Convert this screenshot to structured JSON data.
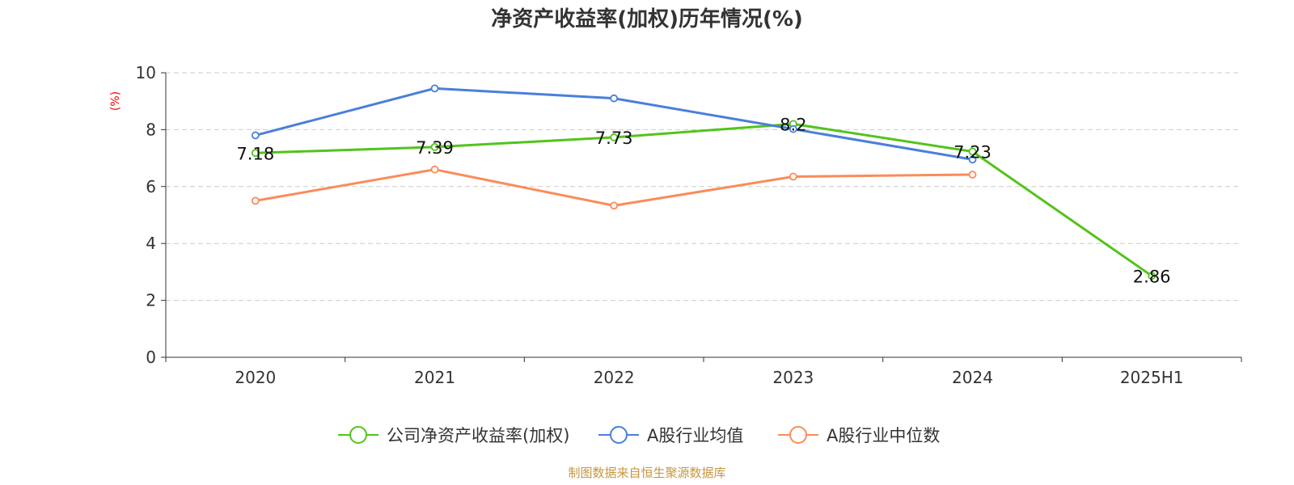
{
  "chart_data": {
    "type": "line",
    "title": "净资产收益率(加权)历年情况(%)",
    "ylabel": "(%)",
    "xlabel": "",
    "categories": [
      "2020",
      "2021",
      "2022",
      "2023",
      "2024",
      "2025H1"
    ],
    "ylim": [
      0,
      10
    ],
    "yticks": [
      0,
      2,
      4,
      6,
      8,
      10
    ],
    "grid": true,
    "legend_position": "bottom",
    "series": [
      {
        "name": "公司净资产收益率(加权)",
        "color": "#52c41a",
        "values": [
          7.18,
          7.39,
          7.73,
          8.2,
          7.23,
          2.86
        ],
        "labels": [
          "7.18",
          "7.39",
          "7.73",
          "8.2",
          "7.23",
          "2.86"
        ]
      },
      {
        "name": "A股行业均值",
        "color": "#4a7fdb",
        "values": [
          7.8,
          9.45,
          9.1,
          8.02,
          6.95,
          null
        ]
      },
      {
        "name": "A股行业中位数",
        "color": "#fa8c5a",
        "values": [
          5.5,
          6.6,
          5.33,
          6.35,
          6.42,
          null
        ]
      }
    ],
    "source": "制图数据来自恒生聚源数据库"
  },
  "colors": {
    "axis": "#333333",
    "grid": "#cccccc",
    "ylabel": "#ff0000",
    "source": "#c8963e",
    "title": "#333333"
  }
}
